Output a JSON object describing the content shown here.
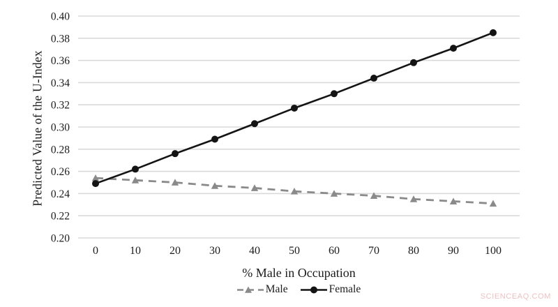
{
  "chart_data": {
    "type": "line",
    "title": "",
    "xlabel": "% Male in Occupation",
    "ylabel": "Predicted Value of the U-Index",
    "x": [
      0,
      10,
      20,
      30,
      40,
      50,
      60,
      70,
      80,
      90,
      100
    ],
    "xticks": [
      "0",
      "10",
      "20",
      "30",
      "40",
      "50",
      "60",
      "70",
      "80",
      "90",
      "100"
    ],
    "yticks": [
      "0.40",
      "0.38",
      "0.36",
      "0.34",
      "0.32",
      "0.30",
      "0.28",
      "0.26",
      "0.24",
      "0.22",
      "0.20"
    ],
    "ylim": [
      0.2,
      0.4
    ],
    "grid": "horizontal-only",
    "gridline_color": "#d9d9d9",
    "axis_text_color": "#1c1c1c",
    "legend_position": "bottom-center",
    "series": [
      {
        "name": "Male",
        "marker": "triangle",
        "line_style": "dashed",
        "color": "#8a8a8a",
        "values": [
          0.254,
          0.252,
          0.25,
          0.247,
          0.245,
          0.242,
          0.24,
          0.238,
          0.235,
          0.233,
          0.231
        ]
      },
      {
        "name": "Female",
        "marker": "circle",
        "line_style": "solid",
        "color": "#141414",
        "values": [
          0.249,
          0.262,
          0.276,
          0.289,
          0.303,
          0.317,
          0.33,
          0.344,
          0.358,
          0.371,
          0.385
        ]
      }
    ]
  },
  "watermark": {
    "text": "SCIENCEAQ.COM",
    "color": "#eec1c1"
  }
}
